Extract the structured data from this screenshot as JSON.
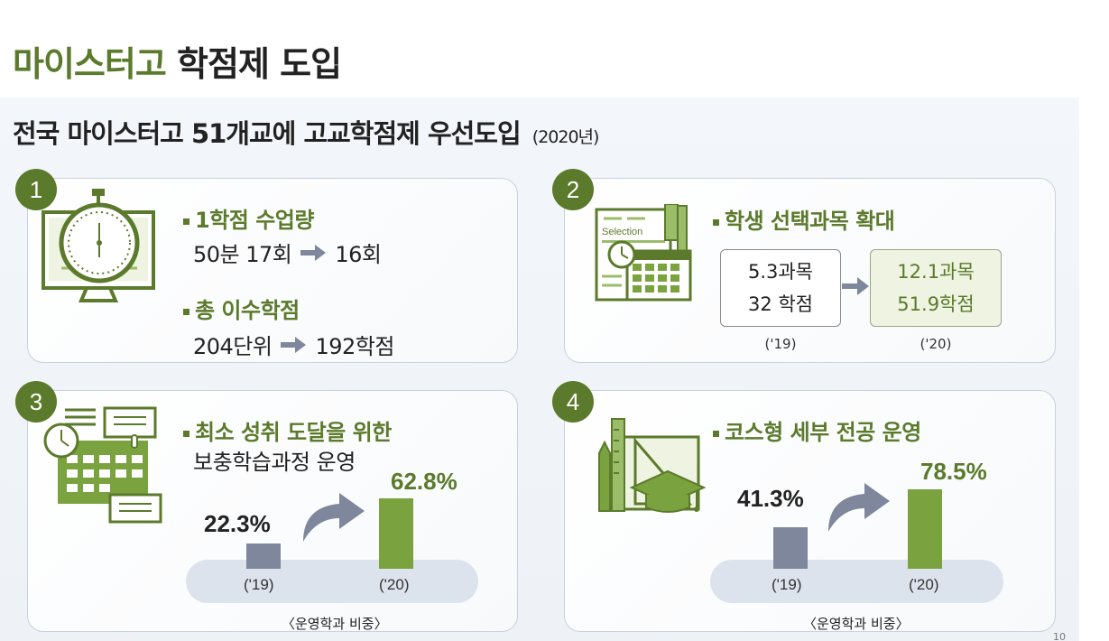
{
  "title": {
    "highlight": "마이스터고",
    "rest": "학점제 도입"
  },
  "subtitle": {
    "main": "전국 마이스터고 51개교에 고교학점제 우선도입",
    "year": "(2020년)"
  },
  "colors": {
    "accent": "#5b7a2b",
    "bar_green": "#7aa23e",
    "bar_gray": "#7e879b"
  },
  "cards": [
    {
      "number": "1",
      "icon": "stopwatch-monitor-icon",
      "item1": {
        "title": "1학점 수업량",
        "from": "50분 17회",
        "to": "16회"
      },
      "item2": {
        "title": "총 이수학점",
        "from": "204단위",
        "to": "192학점"
      }
    },
    {
      "number": "2",
      "icon": "selection-calendar-icon",
      "icon_text": "Selection",
      "title": "학생 선택과목 확대",
      "before": {
        "line1": "5.3과목",
        "line2": "32 학점",
        "year": "('19)"
      },
      "after": {
        "line1": "12.1과목",
        "line2": "51.9학점",
        "year": "('20)"
      }
    },
    {
      "number": "3",
      "icon": "calendar-chat-icon",
      "title_line1": "최소 성취 도달을 위한",
      "title_line2": "보충학습과정 운영",
      "caption": "〈운영학과 비중〉"
    },
    {
      "number": "4",
      "icon": "graduation-tools-icon",
      "title": "코스형 세부 전공 운영",
      "caption": "〈운영학과 비중〉"
    }
  ],
  "chart_data": [
    {
      "type": "bar",
      "categories": [
        "('19)",
        "('20)"
      ],
      "values": [
        22.3,
        62.8
      ],
      "labels": [
        "22.3%",
        "62.8%"
      ],
      "ylim": [
        0,
        100
      ]
    },
    {
      "type": "bar",
      "categories": [
        "('19)",
        "('20)"
      ],
      "values": [
        41.3,
        78.5
      ],
      "labels": [
        "41.3%",
        "78.5%"
      ],
      "ylim": [
        0,
        100
      ]
    }
  ],
  "page_number": "10"
}
